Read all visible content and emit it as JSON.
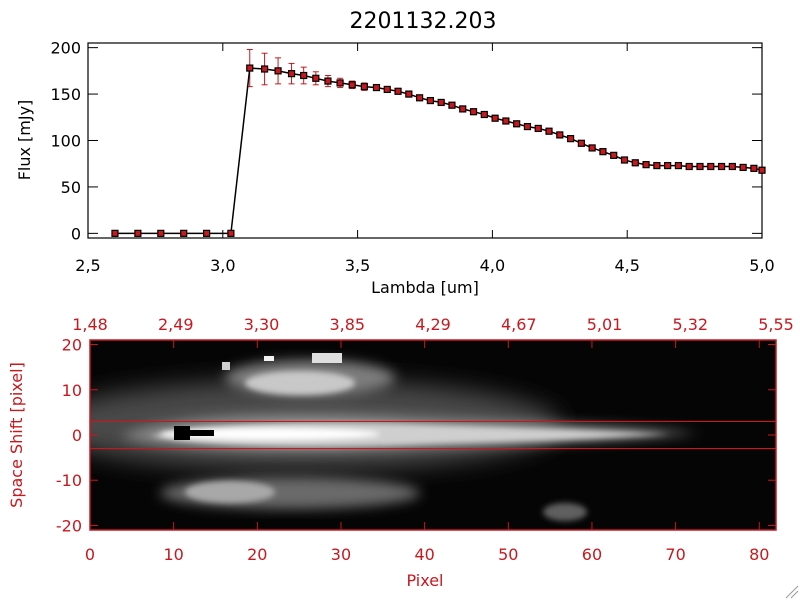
{
  "chart_data": [
    {
      "type": "line",
      "title": "2201132.203",
      "xlabel": "Lambda [um]",
      "ylabel": "Flux [mJy]",
      "xlim": [
        2.5,
        5.0
      ],
      "ylim": [
        -5,
        205
      ],
      "x_ticks": [
        "2.5",
        "3.0",
        "3.5",
        "4.0",
        "4.5",
        "5.0"
      ],
      "y_ticks": [
        "0",
        "50",
        "100",
        "150",
        "200"
      ],
      "series": [
        {
          "x": [
            2.6,
            2.685,
            2.77,
            2.855,
            2.94,
            3.03,
            3.1,
            3.155,
            3.205,
            3.255,
            3.3,
            3.345,
            3.39,
            3.435,
            3.48,
            3.525,
            3.57,
            3.61,
            3.65,
            3.69,
            3.73,
            3.77,
            3.81,
            3.85,
            3.89,
            3.93,
            3.97,
            4.01,
            4.05,
            4.09,
            4.13,
            4.17,
            4.21,
            4.25,
            4.29,
            4.33,
            4.37,
            4.41,
            4.45,
            4.49,
            4.53,
            4.57,
            4.61,
            4.65,
            4.69,
            4.73,
            4.77,
            4.81,
            4.85,
            4.89,
            4.93,
            4.97,
            5.0
          ],
          "y": [
            0,
            0,
            0,
            0,
            0,
            0,
            178,
            177,
            175,
            172,
            170,
            167,
            164,
            162,
            160,
            158,
            157,
            155,
            153,
            150,
            146,
            143,
            141,
            138,
            134,
            131,
            128,
            124,
            121,
            118,
            115,
            113,
            110,
            106,
            102,
            97,
            92,
            88,
            84,
            79,
            76,
            74,
            73,
            73,
            73,
            72,
            72,
            72,
            72,
            72,
            71,
            70,
            68
          ],
          "yerr": [
            0,
            0,
            0,
            0,
            0,
            0,
            20,
            17,
            14,
            11,
            9,
            7,
            6,
            5,
            4,
            4,
            3,
            3,
            3,
            3,
            3,
            3,
            3,
            3,
            3,
            3,
            3,
            3,
            3,
            3,
            3,
            3,
            3,
            3,
            3,
            3,
            3,
            3,
            3,
            3,
            3,
            3,
            3,
            3,
            3,
            3,
            3,
            3,
            3,
            3,
            3,
            3,
            3
          ],
          "line_color": "#000000",
          "marker_color": "#c8181e"
        }
      ]
    },
    {
      "type": "heatmap",
      "xlabel": "Pixel",
      "ylabel": "Space Shift [pixel]",
      "xlim": [
        0,
        82
      ],
      "ylim": [
        -21,
        21
      ],
      "x_ticks": [
        "0",
        "10",
        "20",
        "30",
        "40",
        "50",
        "60",
        "70",
        "80"
      ],
      "y_ticks": [
        "20",
        "10",
        "0",
        "-10",
        "-20"
      ],
      "top_axis_ticks": [
        "1.48",
        "2.49",
        "3.30",
        "3.85",
        "4.29",
        "4.67",
        "5.01",
        "5.32",
        "5.55"
      ],
      "extraction_lines_y": [
        3,
        -3
      ],
      "axis_color": "#c8181e"
    }
  ]
}
